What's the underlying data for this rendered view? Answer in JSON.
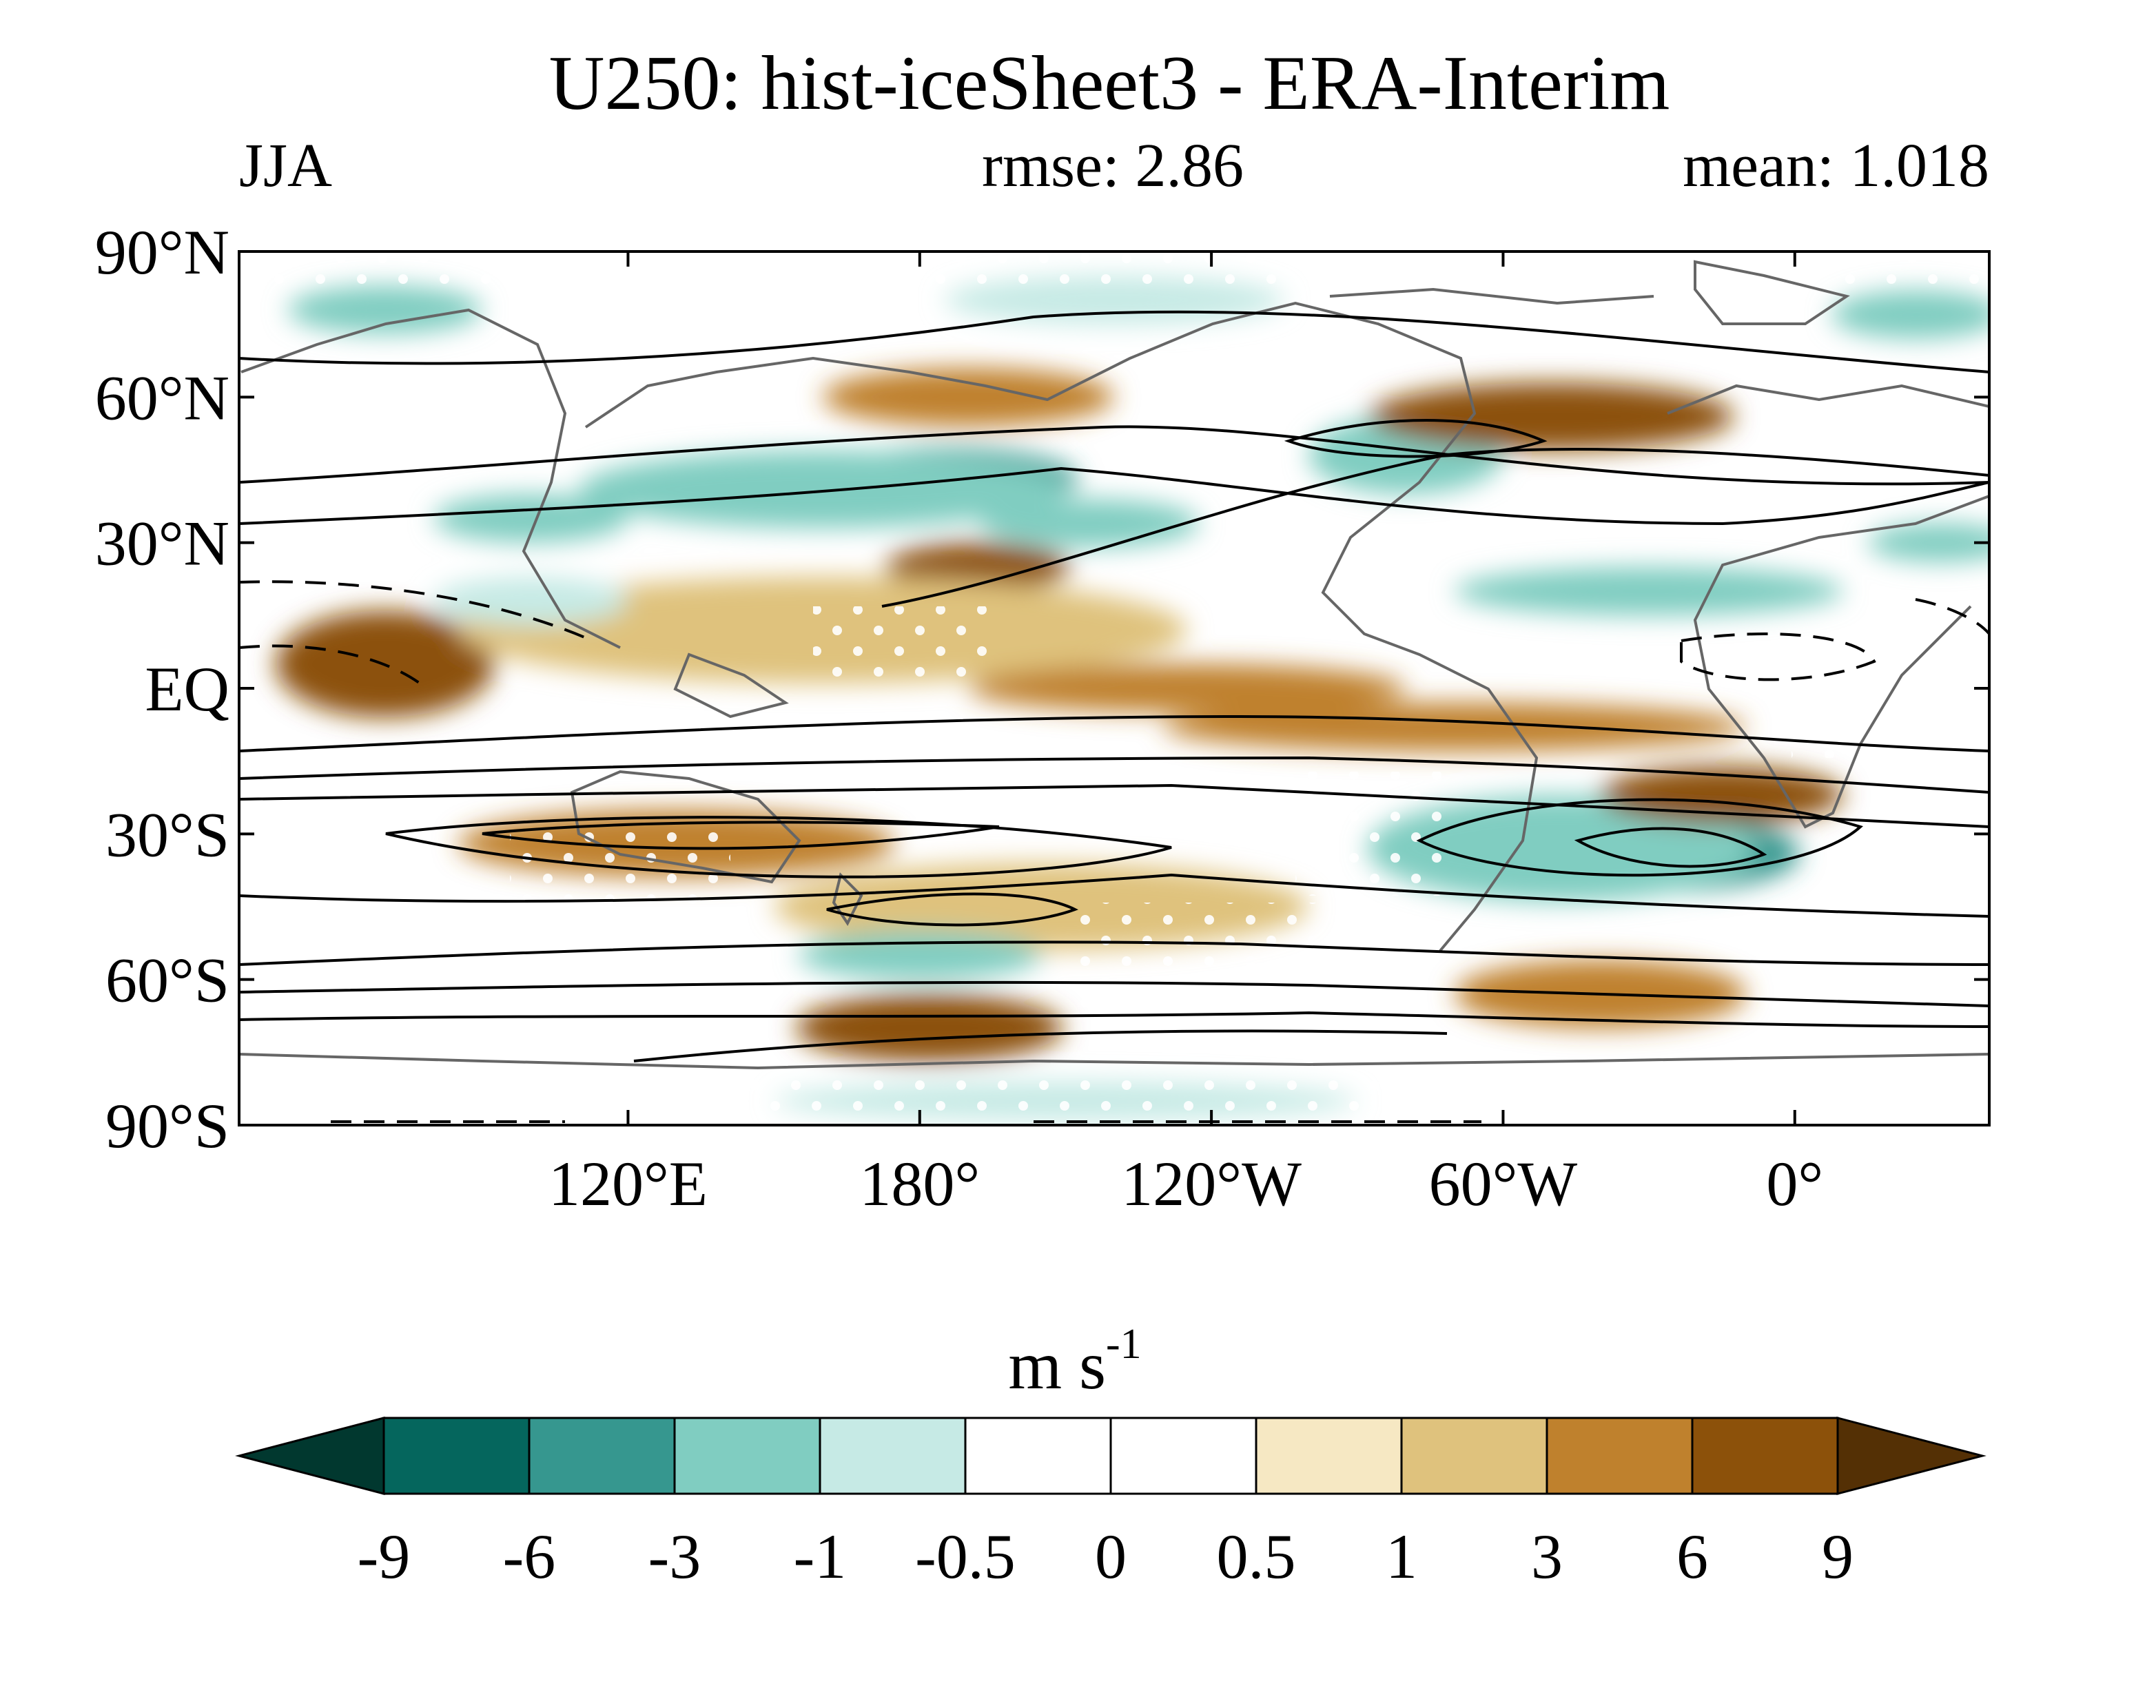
{
  "title": "U250: hist-iceSheet3 - ERA-Interim",
  "subtitles": {
    "left": "JJA",
    "center": "rmse: 2.86",
    "right": "mean: 1.018"
  },
  "map": {
    "lat_ticks": [
      "90°N",
      "60°N",
      "30°N",
      "EQ",
      "30°S",
      "60°S",
      "90°S"
    ],
    "lat_values": [
      90,
      60,
      30,
      0,
      -30,
      -60,
      -90
    ],
    "lon_ticks": [
      "120°E",
      "180°",
      "120°W",
      "60°W",
      "0°"
    ],
    "lon_values": [
      120,
      180,
      240,
      300,
      360
    ],
    "lon_range": [
      40,
      400
    ],
    "lat_range": [
      -90,
      90
    ]
  },
  "colorbar": {
    "units_base": "m s",
    "units_exp": "-1",
    "labels": [
      "-9",
      "-6",
      "-3",
      "-1",
      "-0.5",
      "0",
      "0.5",
      "1",
      "3",
      "6",
      "9"
    ],
    "colors": [
      "#01382f",
      "#05665d",
      "#36978f",
      "#80cdc1",
      "#c6eae5",
      "#ffffff",
      "#ffffff",
      "#f6e8c3",
      "#dfc27d",
      "#bf812d",
      "#8c510a",
      "#543005"
    ]
  },
  "anomalies": [
    {
      "lon": 185,
      "lat": 43,
      "w": 55,
      "h": 13,
      "value": -6
    },
    {
      "lon": 160,
      "lat": 41,
      "w": 100,
      "h": 16,
      "value": -3
    },
    {
      "lon": 100,
      "lat": 35,
      "w": 40,
      "h": 10,
      "value": -3
    },
    {
      "lon": 215,
      "lat": 34,
      "w": 45,
      "h": 10,
      "value": -3
    },
    {
      "lon": 332,
      "lat": -34,
      "w": 58,
      "h": 16,
      "value": -6
    },
    {
      "lon": 312,
      "lat": -33,
      "w": 80,
      "h": 22,
      "value": -3
    },
    {
      "lon": 280,
      "lat": 48,
      "w": 40,
      "h": 16,
      "value": -3
    },
    {
      "lon": 192,
      "lat": 25,
      "w": 38,
      "h": 10,
      "value": 6
    },
    {
      "lon": 190,
      "lat": 60,
      "w": 60,
      "h": 12,
      "value": 3
    },
    {
      "lon": 310,
      "lat": 56,
      "w": 75,
      "h": 14,
      "value": 6
    },
    {
      "lon": 70,
      "lat": 5,
      "w": 45,
      "h": 22,
      "value": 6
    },
    {
      "lon": 290,
      "lat": -8,
      "w": 120,
      "h": 10,
      "value": 3
    },
    {
      "lon": 345,
      "lat": -22,
      "w": 50,
      "h": 12,
      "value": 6
    },
    {
      "lon": 130,
      "lat": -32,
      "w": 90,
      "h": 14,
      "value": 3
    },
    {
      "lon": 182,
      "lat": -70,
      "w": 55,
      "h": 14,
      "value": 6
    },
    {
      "lon": 320,
      "lat": -63,
      "w": 60,
      "h": 14,
      "value": 3
    },
    {
      "lon": 160,
      "lat": 12,
      "w": 150,
      "h": 22,
      "value": 1
    },
    {
      "lon": 235,
      "lat": 0,
      "w": 90,
      "h": 10,
      "value": 3
    },
    {
      "lon": 205,
      "lat": -45,
      "w": 110,
      "h": 18,
      "value": 1
    },
    {
      "lon": 180,
      "lat": -55,
      "w": 50,
      "h": 10,
      "value": -3
    },
    {
      "lon": 220,
      "lat": 80,
      "w": 70,
      "h": 10,
      "value": -1
    },
    {
      "lon": 70,
      "lat": 78,
      "w": 40,
      "h": 10,
      "value": -3
    },
    {
      "lon": 385,
      "lat": 77,
      "w": 35,
      "h": 10,
      "value": -3
    },
    {
      "lon": 330,
      "lat": 20,
      "w": 80,
      "h": 10,
      "value": -3
    },
    {
      "lon": 100,
      "lat": 18,
      "w": 40,
      "h": 10,
      "value": -1
    },
    {
      "lon": 390,
      "lat": 30,
      "w": 30,
      "h": 8,
      "value": -3
    },
    {
      "lon": 210,
      "lat": -85,
      "w": 120,
      "h": 8,
      "value": -1
    }
  ]
}
